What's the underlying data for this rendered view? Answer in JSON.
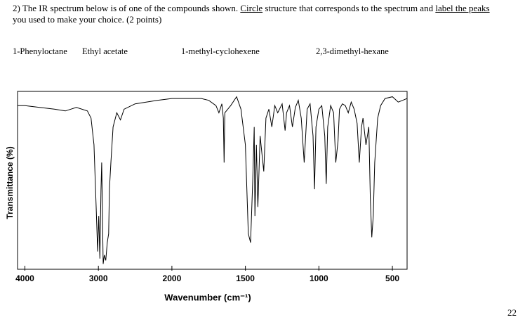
{
  "question": [
    "2) The IR spectrum below is of one of the compounds shown. ",
    "Circle",
    " structure that corresponds to the spectrum and ",
    "label the peaks",
    "you used to make your choice. (2 points)"
  ],
  "compounds": [
    "1-Phenyloctane",
    "Ethyl acetate",
    "1-methyl-cyclohexene",
    "2,3-dimethyl-hexane"
  ],
  "chart_data": {
    "type": "line",
    "xlabel": "Wavenumber (cm⁻¹)",
    "ylabel": "Transmittance (%)",
    "xlim": [
      4100,
      400
    ],
    "xticks": [
      4000,
      3000,
      2000,
      1500,
      1000,
      500
    ],
    "ylim": [
      0,
      100
    ],
    "series": [
      {
        "name": "IR spectrum",
        "color": "#000000",
        "x": [
          4100,
          4000,
          3800,
          3600,
          3450,
          3300,
          3150,
          3100,
          3060,
          3030,
          3010,
          2995,
          2980,
          2965,
          2955,
          2935,
          2920,
          2900,
          2880,
          2860,
          2850,
          2830,
          2800,
          2750,
          2700,
          2650,
          2500,
          2200,
          2000,
          1900,
          1800,
          1750,
          1700,
          1680,
          1660,
          1650,
          1645,
          1640,
          1620,
          1600,
          1560,
          1530,
          1500,
          1480,
          1465,
          1450,
          1440,
          1435,
          1425,
          1415,
          1400,
          1375,
          1360,
          1340,
          1320,
          1300,
          1280,
          1250,
          1230,
          1220,
          1200,
          1180,
          1160,
          1140,
          1120,
          1100,
          1080,
          1060,
          1040,
          1030,
          1020,
          1000,
          980,
          960,
          950,
          940,
          920,
          900,
          885,
          870,
          860,
          840,
          820,
          800,
          780,
          760,
          740,
          725,
          710,
          700,
          680,
          660,
          650,
          640,
          630,
          620,
          600,
          580,
          550,
          500,
          460,
          430,
          400
        ],
        "values": [
          92,
          92,
          91,
          90,
          89,
          91,
          89,
          85,
          70,
          35,
          10,
          30,
          6,
          45,
          60,
          3,
          8,
          5,
          15,
          20,
          45,
          60,
          80,
          88,
          84,
          90,
          93,
          95,
          96,
          96,
          96,
          95,
          92,
          88,
          93,
          85,
          60,
          88,
          90,
          92,
          97,
          90,
          70,
          20,
          15,
          50,
          80,
          30,
          70,
          35,
          75,
          55,
          85,
          90,
          80,
          92,
          88,
          93,
          78,
          88,
          92,
          80,
          91,
          95,
          85,
          60,
          90,
          93,
          75,
          45,
          80,
          90,
          92,
          75,
          48,
          80,
          92,
          88,
          60,
          72,
          90,
          93,
          92,
          88,
          94,
          90,
          82,
          60,
          80,
          85,
          70,
          80,
          40,
          18,
          30,
          60,
          85,
          92,
          96,
          97,
          94,
          95,
          96
        ]
      }
    ]
  }
}
